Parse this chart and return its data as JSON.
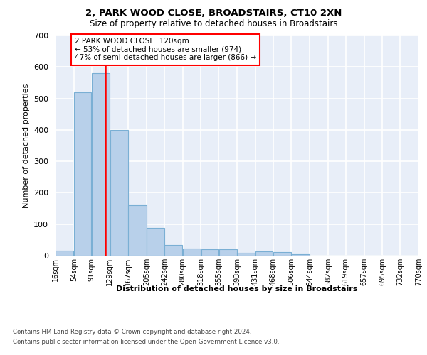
{
  "title1": "2, PARK WOOD CLOSE, BROADSTAIRS, CT10 2XN",
  "title2": "Size of property relative to detached houses in Broadstairs",
  "xlabel": "Distribution of detached houses by size in Broadstairs",
  "ylabel": "Number of detached properties",
  "bar_values": [
    15,
    520,
    580,
    400,
    160,
    87,
    35,
    22,
    20,
    20,
    10,
    13,
    12,
    5,
    0,
    0,
    0,
    0,
    0,
    0
  ],
  "bin_edges": [
    16,
    54,
    91,
    129,
    167,
    205,
    242,
    280,
    318,
    355,
    393,
    431,
    468,
    506,
    544,
    582,
    619,
    657,
    695,
    732,
    770
  ],
  "bin_labels": [
    "16sqm",
    "54sqm",
    "91sqm",
    "129sqm",
    "167sqm",
    "205sqm",
    "242sqm",
    "280sqm",
    "318sqm",
    "355sqm",
    "393sqm",
    "431sqm",
    "468sqm",
    "506sqm",
    "544sqm",
    "582sqm",
    "619sqm",
    "657sqm",
    "695sqm",
    "732sqm",
    "770sqm"
  ],
  "bar_color": "#b8d0ea",
  "bar_edge_color": "#7aafd4",
  "vline_x": 120,
  "vline_color": "red",
  "annotation_text": "2 PARK WOOD CLOSE: 120sqm\n← 53% of detached houses are smaller (974)\n47% of semi-detached houses are larger (866) →",
  "annotation_box_facecolor": "white",
  "annotation_box_edgecolor": "red",
  "ylim": [
    0,
    700
  ],
  "yticks": [
    0,
    100,
    200,
    300,
    400,
    500,
    600,
    700
  ],
  "bg_color": "#e8eef8",
  "grid_color": "#ffffff",
  "footer1": "Contains HM Land Registry data © Crown copyright and database right 2024.",
  "footer2": "Contains public sector information licensed under the Open Government Licence v3.0."
}
